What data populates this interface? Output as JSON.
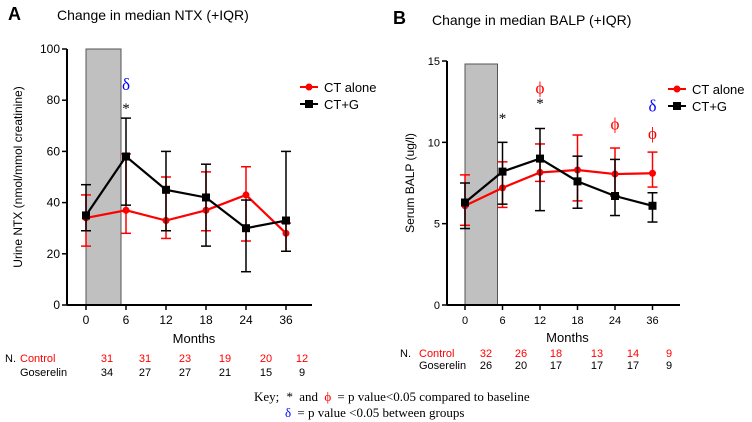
{
  "key": {
    "prefix": "Key;",
    "star": "*",
    "and": "and",
    "phi": "ϕ",
    "line1_rest": "= p value<0.05 compared to baseline",
    "delta": "δ",
    "line2_rest": "= p value <0.05 between groups"
  },
  "colors": {
    "ct_alone": "#ff0000",
    "ct_g": "#000000",
    "delta": "#0000ff",
    "shade": "#c0c0c0"
  },
  "chart_data": [
    {
      "panel": "A",
      "type": "line",
      "title": "Change in median NTX (+IQR)",
      "xlabel": "Months",
      "ylabel": "Urine NTX (nmol/mmol creatinine)",
      "categories": [
        "0",
        "6",
        "12",
        "18",
        "24",
        "36"
      ],
      "ylim": [
        0,
        100
      ],
      "yticks": [
        0,
        20,
        40,
        60,
        80,
        100
      ],
      "shaded_region": {
        "from": "0",
        "to": "6"
      },
      "legend_position": "top-right",
      "series": [
        {
          "name": "CT alone",
          "color": "#ff0000",
          "marker": "circle",
          "values": [
            34,
            37,
            33,
            37,
            43,
            28
          ],
          "lower": [
            23,
            28,
            26,
            29,
            25,
            21
          ],
          "upper": [
            43,
            59,
            50,
            52,
            54,
            32
          ]
        },
        {
          "name": "CT+G",
          "color": "#000000",
          "marker": "square",
          "values": [
            35,
            58,
            45,
            42,
            30,
            33
          ],
          "lower": [
            29,
            39,
            29,
            23,
            13,
            21
          ],
          "upper": [
            47,
            73,
            60,
            55,
            41,
            60
          ]
        }
      ],
      "annotations": [
        {
          "text": "δ",
          "x": "6",
          "y": 84,
          "color": "#0000ff"
        },
        {
          "text": "*",
          "x": "6",
          "y": 75,
          "color": "#000000"
        }
      ],
      "n_table": {
        "label": "N.",
        "rows": [
          {
            "name": "Control",
            "color": "#ff0000",
            "values": [
              "31",
              "31",
              "23",
              "19",
              "20",
              "12"
            ]
          },
          {
            "name": "Goserelin",
            "color": "#000000",
            "values": [
              "34",
              "27",
              "27",
              "21",
              "15",
              "9"
            ]
          }
        ]
      }
    },
    {
      "panel": "B",
      "type": "line",
      "title": "Change in median BALP (+IQR)",
      "xlabel": "Months",
      "ylabel": "Serum BALP (ug/l)",
      "categories": [
        "0",
        "6",
        "12",
        "18",
        "24",
        "36"
      ],
      "ylim": [
        0,
        15
      ],
      "yticks": [
        0,
        5,
        10,
        15
      ],
      "shaded_region": {
        "from": "0",
        "to": "6"
      },
      "legend_position": "top-right",
      "series": [
        {
          "name": "CT alone",
          "color": "#ff0000",
          "marker": "circle",
          "values": [
            6.1,
            7.2,
            8.15,
            8.3,
            8.05,
            8.1
          ],
          "lower": [
            4.9,
            6.0,
            7.6,
            6.4,
            6.7,
            7.25
          ],
          "upper": [
            8.0,
            8.8,
            9.9,
            10.45,
            9.65,
            9.4
          ]
        },
        {
          "name": "CT+G",
          "color": "#000000",
          "marker": "square",
          "values": [
            6.3,
            8.2,
            9.0,
            7.6,
            6.7,
            6.1
          ],
          "lower": [
            4.7,
            6.2,
            5.8,
            5.95,
            5.5,
            5.1
          ],
          "upper": [
            7.5,
            10.0,
            10.85,
            9.15,
            8.95,
            6.9
          ]
        }
      ],
      "annotations": [
        {
          "text": "*",
          "x": "6",
          "y": 11.2,
          "color": "#000000"
        },
        {
          "text": "ϕ",
          "x": "12",
          "y": 13.0,
          "color": "#ff0000"
        },
        {
          "text": "*",
          "x": "12",
          "y": 12.1,
          "color": "#000000"
        },
        {
          "text": "ϕ",
          "x": "24",
          "y": 10.8,
          "color": "#ff0000"
        },
        {
          "text": "δ",
          "x": "36",
          "y": 11.9,
          "color": "#0000ff"
        },
        {
          "text": "ϕ",
          "x": "36",
          "y": 10.2,
          "color": "#ff0000"
        }
      ],
      "n_table": {
        "label": "N.",
        "rows": [
          {
            "name": "Control",
            "color": "#ff0000",
            "values": [
              "32",
              "26",
              "18",
              "13",
              "14",
              "9"
            ]
          },
          {
            "name": "Goserelin",
            "color": "#000000",
            "values": [
              "26",
              "20",
              "17",
              "17",
              "17",
              "9"
            ]
          }
        ]
      }
    }
  ]
}
